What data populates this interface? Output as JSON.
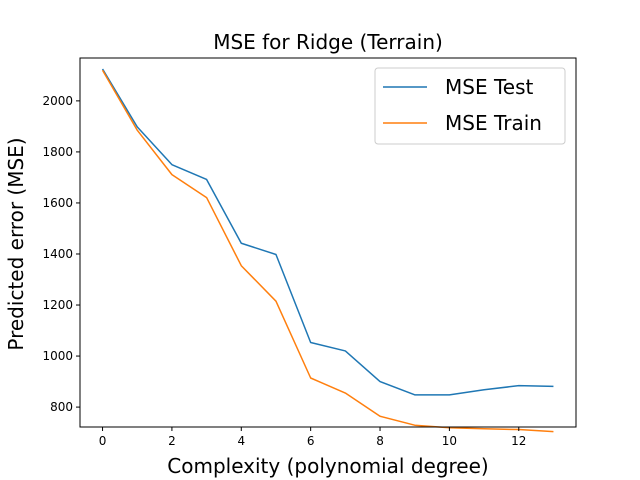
{
  "chart_data": {
    "type": "line",
    "title": "MSE for Ridge (Terrain)",
    "xlabel": "Complexity (polynomial degree)",
    "ylabel": "Predicted error (MSE)",
    "x": [
      0,
      1,
      2,
      3,
      4,
      5,
      6,
      7,
      8,
      9,
      10,
      11,
      12,
      13
    ],
    "xlim": [
      -0.65,
      13.65
    ],
    "ylim": [
      722,
      2168
    ],
    "xticks": [
      0,
      2,
      4,
      6,
      8,
      10,
      12
    ],
    "yticks": [
      800,
      1000,
      1200,
      1400,
      1600,
      1800,
      2000
    ],
    "grid": false,
    "legend_position": "top-right",
    "series": [
      {
        "name": "MSE Test",
        "color": "#1f77b4",
        "values": [
          2125,
          1898,
          1750,
          1692,
          1442,
          1398,
          1053,
          1020,
          900,
          848,
          848,
          868,
          884,
          881
        ]
      },
      {
        "name": "MSE Train",
        "color": "#ff7f0e",
        "values": [
          2120,
          1885,
          1711,
          1621,
          1354,
          1215,
          914,
          855,
          764,
          729,
          719,
          715,
          712,
          704
        ]
      }
    ]
  }
}
